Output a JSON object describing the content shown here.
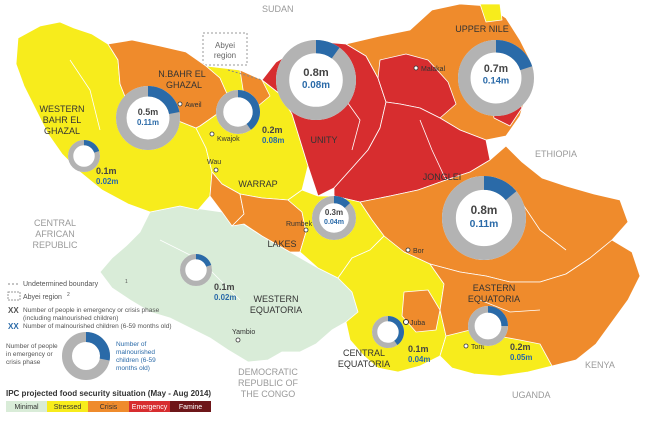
{
  "map": {
    "neighbors": [
      {
        "id": "sudan",
        "label": "SUDAN"
      },
      {
        "id": "ethiopia",
        "label": "ETHIOPIA"
      },
      {
        "id": "car",
        "label": "CENTRAL AFRICAN REPUBLIC",
        "line1": "CENTRAL",
        "line2": "AFRICAN",
        "line3": "REPUBLIC"
      },
      {
        "id": "drc",
        "label": "DEMOCRATIC REPUBLIC OF THE CONGO",
        "line1": "DEMOCRATIC",
        "line2": "REPUBLIC OF",
        "line3": "THE CONGO"
      },
      {
        "id": "uganda",
        "label": "UGANDA"
      },
      {
        "id": "kenya",
        "label": "KENYA"
      }
    ],
    "abyei": {
      "line1": "Abyei",
      "line2": "region"
    },
    "states": {
      "upper_nile": "UPPER NILE",
      "n_bahr_el_ghazal_1": "N.BAHR EL",
      "n_bahr_el_ghazal_2": "GHAZAL",
      "western_bahr_el_ghazal_1": "WESTERN",
      "western_bahr_el_ghazal_2": "BAHR EL",
      "western_bahr_el_ghazal_3": "GHAZAL",
      "warrap": "WARRAP",
      "unity": "UNITY",
      "jonglei": "JONGLEI",
      "lakes": "LAKES",
      "western_equatoria_1": "WESTERN",
      "western_equatoria_2": "EQUATORIA",
      "central_equatoria_1": "CENTRAL",
      "central_equatoria_2": "EQUATORIA",
      "eastern_equatoria_1": "EASTERN",
      "eastern_equatoria_2": "EQUATORIA"
    },
    "towns": {
      "malakal": "Malakal",
      "aweil": "Aweil",
      "kwajok": "Kwajok",
      "wau": "Wau",
      "rumbek": "Rumbek",
      "bor": "Bor",
      "yambio": "Yambio",
      "juba": "Juba",
      "torit": "Torit"
    },
    "bubbles": [
      {
        "id": "upper-nile",
        "people": "0.7m",
        "children": "0.14m",
        "share": 0.2
      },
      {
        "id": "unity",
        "people": "0.8m",
        "children": "0.08m",
        "share": 0.1
      },
      {
        "id": "n-bahr-el-ghazal",
        "people": "0.5m",
        "children": "0.11m",
        "share": 0.22
      },
      {
        "id": "warrap",
        "people": "0.2m",
        "children": "0.08m",
        "share": 0.4
      },
      {
        "id": "western-bahr-el-ghazal",
        "people": "0.1m",
        "children": "0.02m",
        "share": 0.2
      },
      {
        "id": "jonglei",
        "people": "0.8m",
        "children": "0.11m",
        "share": 0.14
      },
      {
        "id": "lakes",
        "people": "0.3m",
        "children": "0.04m",
        "share": 0.13
      },
      {
        "id": "western-equatoria",
        "people": "0.1m",
        "children": "0.02m",
        "share": 0.2
      },
      {
        "id": "central-equatoria",
        "people": "0.1m",
        "children": "0.04m",
        "share": 0.4
      },
      {
        "id": "eastern-equatoria",
        "people": "0.2m",
        "children": "0.05m",
        "share": 0.25
      }
    ]
  },
  "legend": {
    "undetermined_boundary": "Undetermined boundary",
    "undetermined_sup": "1",
    "abyei_region": "Abyei region",
    "abyei_sup": "2",
    "xx_symbol": "XX",
    "people_note_1": "Number of people in emergency or crisis phase",
    "people_note_2": "(including malnourished children)",
    "children_note": "Number of malnourished children (6-59 months old)",
    "donut_people_1": "Number of people",
    "donut_people_2": "in emergency or",
    "donut_people_3": "crisis phase",
    "donut_children_1": "Number of",
    "donut_children_2": "malnourished",
    "donut_children_3": "children (6-59",
    "donut_children_4": "months old)",
    "title": "IPC projected food security situation (May - Aug 2014)",
    "scale": [
      {
        "label": "Minimal",
        "color": "#d9ecd8"
      },
      {
        "label": "Stressed",
        "color": "#f7ec1c"
      },
      {
        "label": "Crisis",
        "color": "#ef8b2c"
      },
      {
        "label": "Emergency",
        "color": "#d72d2f"
      },
      {
        "label": "Famine",
        "color": "#6e1619"
      }
    ]
  },
  "colors": {
    "minimal": "#d9ecd8",
    "stressed": "#f7ec1c",
    "crisis": "#ef8b2c",
    "emergency": "#d72d2f",
    "ring": "#b3b3b3",
    "ring_blue": "#2a6aa8",
    "people_text": "#444444",
    "children_text": "#2a6aa8"
  }
}
